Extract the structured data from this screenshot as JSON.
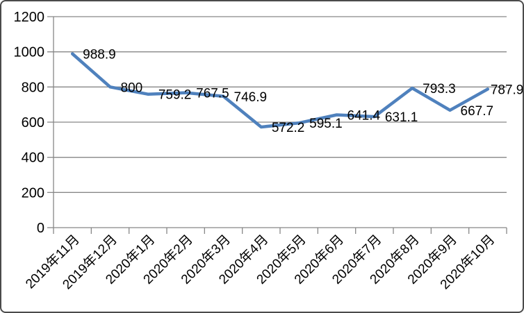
{
  "chart_data": {
    "type": "line",
    "title": "",
    "xlabel": "",
    "ylabel": "",
    "categories": [
      "2019年11月",
      "2019年12月",
      "2020年1月",
      "2020年2月",
      "2020年3月",
      "2020年4月",
      "2020年5月",
      "2020年6月",
      "2020年7月",
      "2020年8月",
      "2020年9月",
      "2020年10月"
    ],
    "series": [
      {
        "name": "",
        "values": [
          988.9,
          800,
          759.2,
          767.5,
          746.9,
          572.2,
          595.1,
          641.4,
          631.1,
          793.3,
          667.7,
          787.9
        ]
      }
    ],
    "data_labels": [
      "988.9",
      "800",
      "759.2",
      "767.5",
      "746.9",
      "572.2",
      "595.1",
      "641.4",
      "631.1",
      "793.3",
      "667.7",
      "787.9"
    ],
    "y_ticks": [
      "0",
      "200",
      "400",
      "600",
      "800",
      "1000",
      "1200"
    ],
    "ylim": [
      0,
      1200
    ],
    "y_step": 200,
    "grid": "horizontal",
    "legend": "none",
    "colors": {
      "line": "#4F81BD",
      "grid": "#878787",
      "axis": "#878787",
      "text": "#000000",
      "background": "#FFFFFF",
      "border": "#4A4A4A"
    }
  }
}
